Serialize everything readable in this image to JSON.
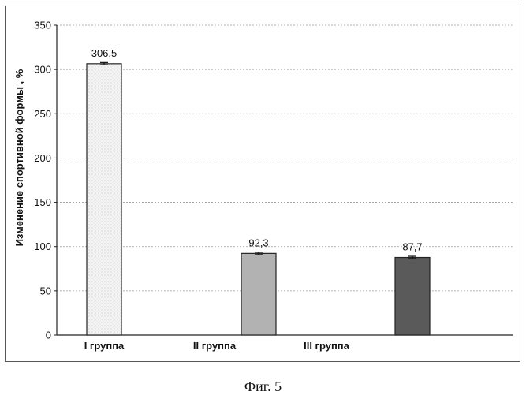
{
  "chart_data": {
    "type": "bar",
    "categories": [
      "I группа",
      "II группа",
      "III группа"
    ],
    "values": [
      306.5,
      92.3,
      87.7
    ],
    "value_labels": [
      "306,5",
      "92,3",
      "87,7"
    ],
    "title": "",
    "xlabel": "",
    "ylabel": "Изменение спортивной формы , %",
    "ylim": [
      0,
      350
    ],
    "yticks": [
      0,
      50,
      100,
      150,
      200,
      250,
      300,
      350
    ],
    "ytick_labels": [
      "0",
      "50",
      "100",
      "150",
      "200",
      "250",
      "300",
      "350"
    ],
    "grid": true,
    "legend": "none",
    "error_bars": true,
    "bar_colors": [
      "#f1f1f1",
      "#b2b2b2",
      "#5a5a5a"
    ]
  },
  "caption": "Фиг. 5"
}
